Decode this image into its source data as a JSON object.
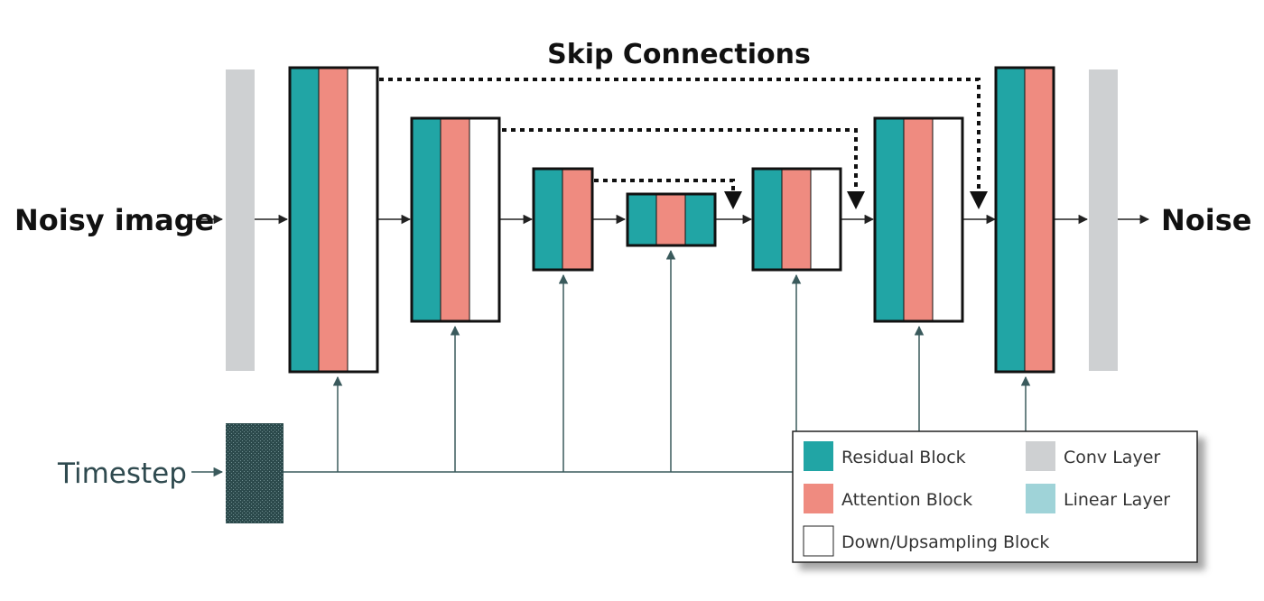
{
  "title": "Skip Connections",
  "input_label": "Noisy image",
  "output_label": "Noise",
  "timestep_label": "Timestep",
  "colors": {
    "residual": "#21a5a5",
    "attention": "#ef8b80",
    "sampling": "#ffffff",
    "conv": "#ced0d2",
    "linear": "#9fd3d8",
    "timestep_block": "#2c4a4c",
    "time_line": "#3a5a5c",
    "arrow": "#222222"
  },
  "legend": {
    "residual": "Residual Block",
    "attention": "Attention Block",
    "sampling": "Down/Upsampling Block",
    "conv": "Conv Layer",
    "linear": "Linear Layer"
  }
}
